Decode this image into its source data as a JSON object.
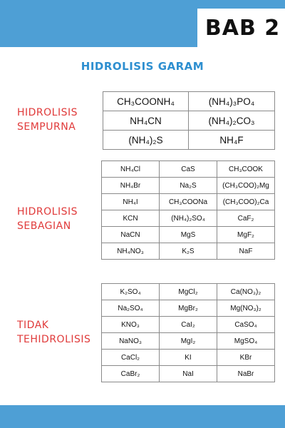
{
  "header": {
    "chapter": "BAB 2",
    "title": "HIDROLISIS GARAM"
  },
  "groups": [
    {
      "label_lines": [
        "HIDROLISIS",
        "SEMPURNA"
      ],
      "rows": [
        [
          "CH₃COONH₄",
          "(NH₄)₃PO₄"
        ],
        [
          "NH₄CN",
          "(NH₄)₂CO₃"
        ],
        [
          "(NH₄)₂S",
          "NH₄F"
        ]
      ]
    },
    {
      "label_lines": [
        "HIDROLISIS",
        "SEBAGIAN"
      ],
      "rows": [
        [
          "NH₄Cl",
          "CaS",
          "CH₃COOK"
        ],
        [
          "NH₄Br",
          "Na₂S",
          "(CH₃COO)₂Mg"
        ],
        [
          "NH₄I",
          "CH₃COONa",
          "(CH₃COO)₂Ca"
        ],
        [
          "KCN",
          "(NH₄)₂SO₄",
          "CaF₂"
        ],
        [
          "NaCN",
          "MgS",
          "MgF₂"
        ],
        [
          "NH₄NO₃",
          "K₂S",
          "NaF"
        ]
      ]
    },
    {
      "label_lines": [
        "TIDAK",
        "TEHIDROLISIS"
      ],
      "rows": [
        [
          "K₂SO₄",
          "MgCl₂",
          "Ca(NO₃)₂"
        ],
        [
          "Na₂SO₄",
          "MgBr₂",
          "Mg(NO₃)₂"
        ],
        [
          "KNO₃",
          "CaI₂",
          "CaSO₄"
        ],
        [
          "NaNO₃",
          "MgI₂",
          "MgSO₄"
        ],
        [
          "CaCl₂",
          "KI",
          "KBr"
        ],
        [
          "CaBr₂",
          "NaI",
          "NaBr"
        ]
      ]
    }
  ],
  "colors": {
    "band": "#4e9fd5",
    "title": "#2e8fd0",
    "label": "#e03a3a"
  }
}
